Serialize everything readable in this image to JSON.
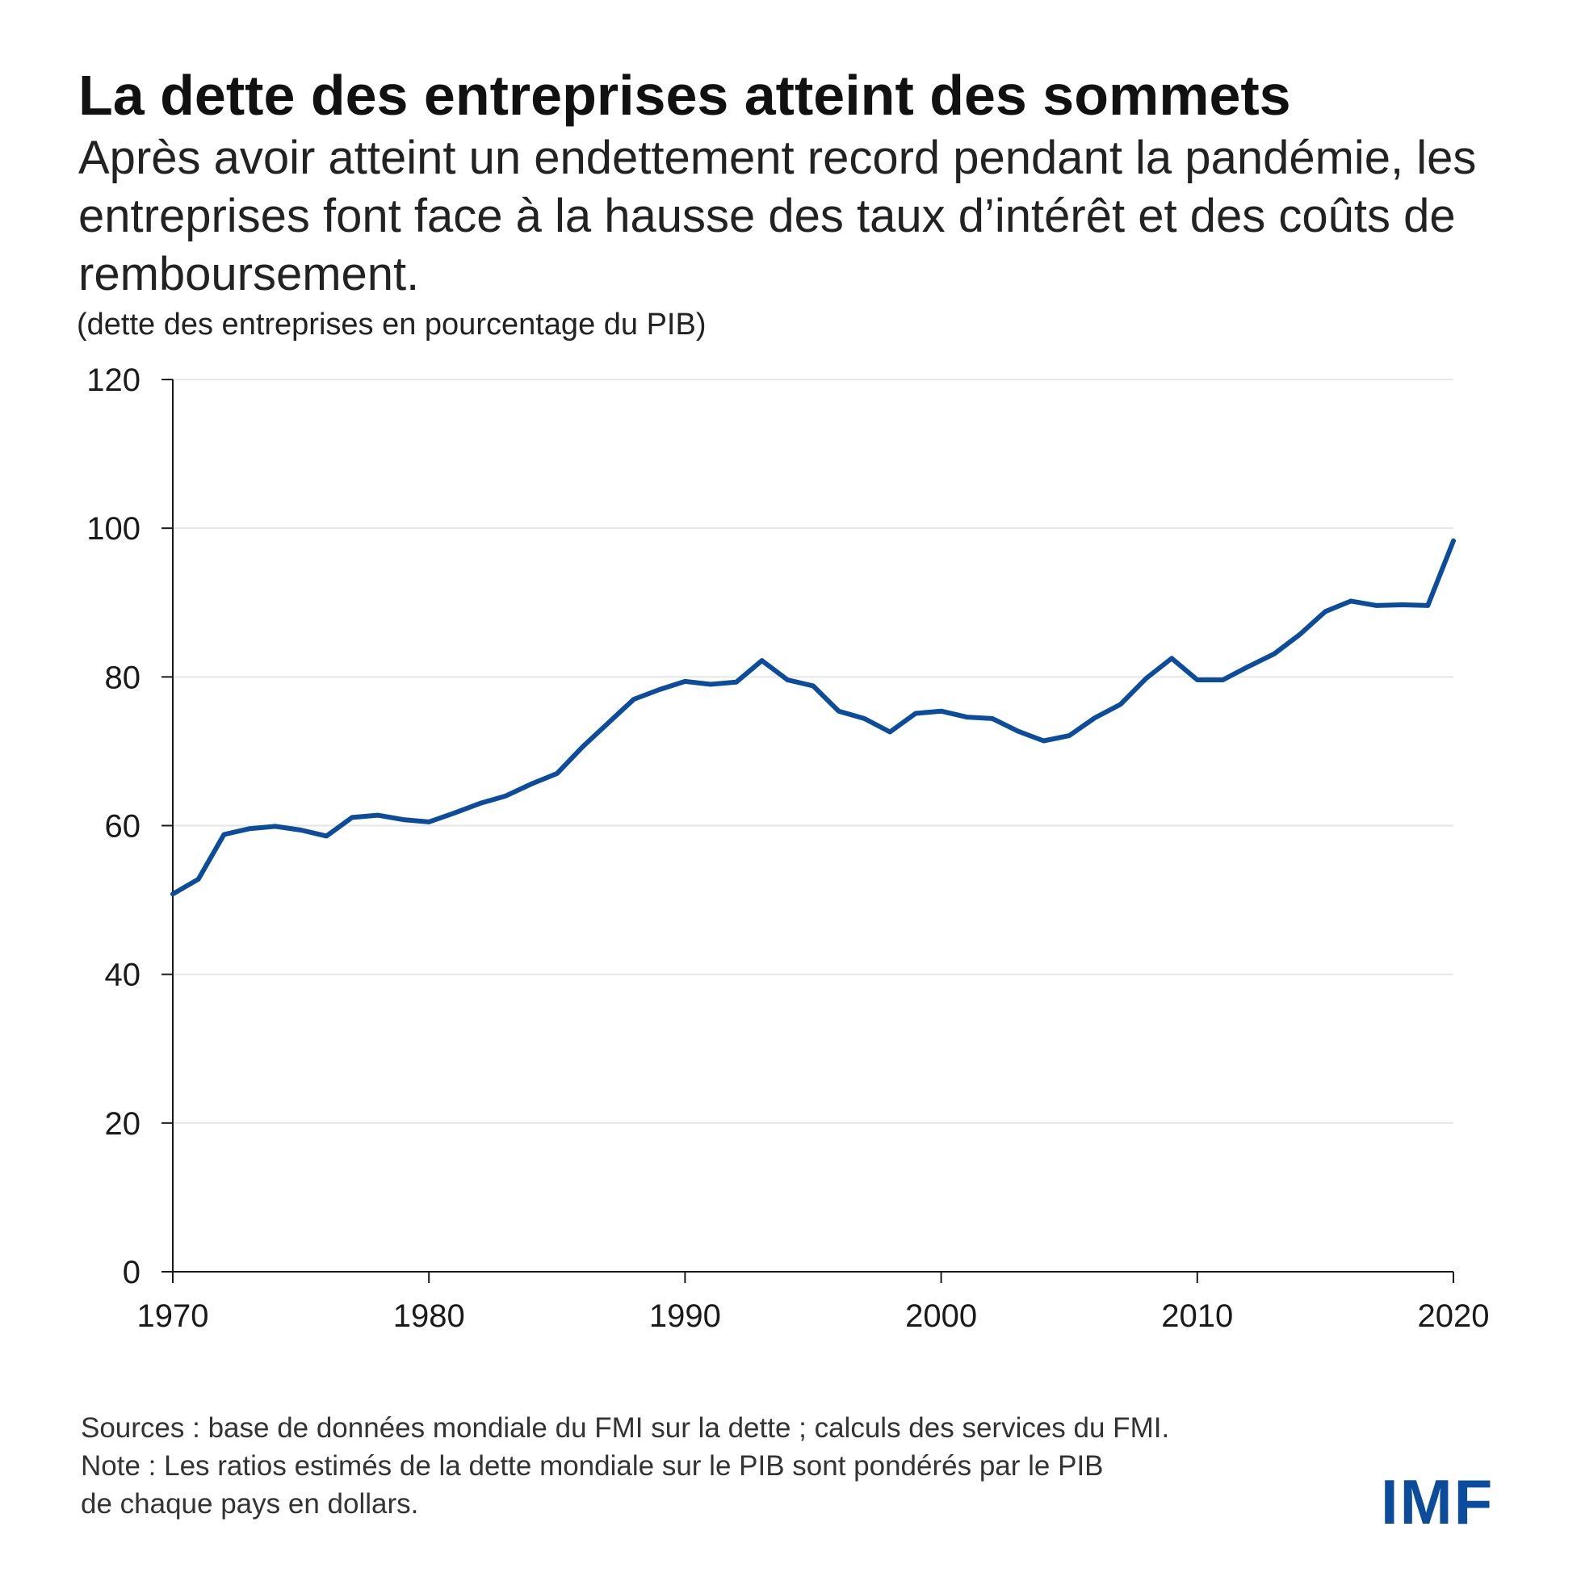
{
  "header": {
    "title": "La dette des entreprises atteint des sommets",
    "subtitle": "Après avoir atteint un endettement record pendant la pandémie, les entreprises font face à la hausse des taux d’intérêt et des coûts de remboursement.",
    "units": "(dette des entreprises en pourcentage du PIB)"
  },
  "footer": {
    "sources": "Sources : base de données mondiale du FMI sur la dette ; calculs des services du FMI.",
    "note_line1": "Note : Les ratios estimés de la dette mondiale sur le PIB sont pondérés par le PIB",
    "note_line2": "de chaque pays en dollars."
  },
  "logo": {
    "text": "IMF"
  },
  "colors": {
    "line": "#0b4c9c",
    "logo": "#0b4c9c",
    "grid": "#e6e6e6",
    "axis": "#1a1a1a"
  },
  "chart_data": {
    "type": "line",
    "title": "La dette des entreprises atteint des sommets",
    "ylabel": "(dette des entreprises en pourcentage du PIB)",
    "xlabel": "",
    "xlim": [
      1970,
      2020
    ],
    "ylim": [
      0,
      120
    ],
    "x_ticks": [
      1970,
      1980,
      1990,
      2000,
      2010,
      2020
    ],
    "y_ticks": [
      0,
      20,
      40,
      60,
      80,
      100,
      120
    ],
    "grid": "horizontal",
    "series": [
      {
        "name": "Dette des entreprises (% du PIB)",
        "x": [
          1970,
          1971,
          1972,
          1973,
          1974,
          1975,
          1976,
          1977,
          1978,
          1979,
          1980,
          1981,
          1982,
          1983,
          1984,
          1985,
          1986,
          1987,
          1988,
          1989,
          1990,
          1991,
          1992,
          1993,
          1994,
          1995,
          1996,
          1997,
          1998,
          1999,
          2000,
          2001,
          2002,
          2003,
          2004,
          2005,
          2006,
          2007,
          2008,
          2009,
          2010,
          2011,
          2012,
          2013,
          2014,
          2015,
          2016,
          2017,
          2018,
          2019,
          2020
        ],
        "values": [
          50.8,
          52.8,
          58.8,
          59.6,
          59.9,
          59.4,
          58.6,
          61.1,
          61.4,
          60.8,
          60.5,
          61.7,
          63.0,
          64.0,
          65.6,
          67.0,
          70.6,
          73.8,
          77.0,
          78.3,
          79.4,
          79.0,
          79.3,
          82.2,
          79.6,
          78.8,
          75.4,
          74.4,
          72.6,
          75.1,
          75.4,
          74.6,
          74.4,
          72.7,
          71.4,
          72.1,
          74.5,
          76.3,
          79.8,
          82.5,
          79.6,
          79.6,
          81.4,
          83.1,
          85.7,
          88.8,
          90.2,
          89.6,
          89.7,
          89.6,
          98.3
        ]
      }
    ]
  }
}
